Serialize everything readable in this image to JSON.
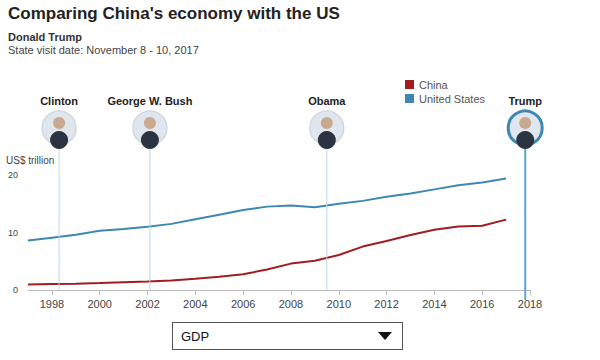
{
  "chart_data": {
    "type": "line",
    "title": "Comparing China's economy with the US",
    "subtitle": [
      "Donald Trump",
      "State visit date: November 8 - 10, 2017"
    ],
    "y_label": "US$ trillion",
    "dropdown": "GDP",
    "x": [
      1997,
      1998,
      1999,
      2000,
      2001,
      2002,
      2003,
      2004,
      2005,
      2006,
      2007,
      2008,
      2009,
      2010,
      2011,
      2012,
      2013,
      2014,
      2015,
      2016,
      2017
    ],
    "series": [
      {
        "name": "China",
        "color": "#a11d21",
        "values": [
          0.96,
          1.03,
          1.09,
          1.21,
          1.34,
          1.47,
          1.66,
          1.96,
          2.29,
          2.75,
          3.55,
          4.59,
          5.1,
          6.09,
          7.55,
          8.53,
          9.57,
          10.48,
          11.06,
          11.19,
          12.24
        ]
      },
      {
        "name": "United States",
        "color": "#3f87b3",
        "values": [
          8.6,
          9.1,
          9.6,
          10.3,
          10.6,
          11.0,
          11.5,
          12.3,
          13.1,
          13.9,
          14.5,
          14.7,
          14.4,
          15.0,
          15.5,
          16.2,
          16.8,
          17.5,
          18.2,
          18.7,
          19.4
        ]
      }
    ],
    "annotations": [
      {
        "label": "Clinton",
        "x": 1998.3
      },
      {
        "label": "George W. Bush",
        "x": 2002.1
      },
      {
        "label": "Obama",
        "x": 2009.5
      },
      {
        "label": "Trump",
        "x": 2017.8
      }
    ],
    "xlim": [
      1997,
      2018
    ],
    "xticks": [
      1998,
      2000,
      2002,
      2004,
      2006,
      2008,
      2010,
      2012,
      2014,
      2016,
      2018
    ],
    "ylim": [
      0,
      20
    ],
    "yticks": [
      0,
      10,
      20
    ],
    "grid": false,
    "legend": "top-right"
  }
}
